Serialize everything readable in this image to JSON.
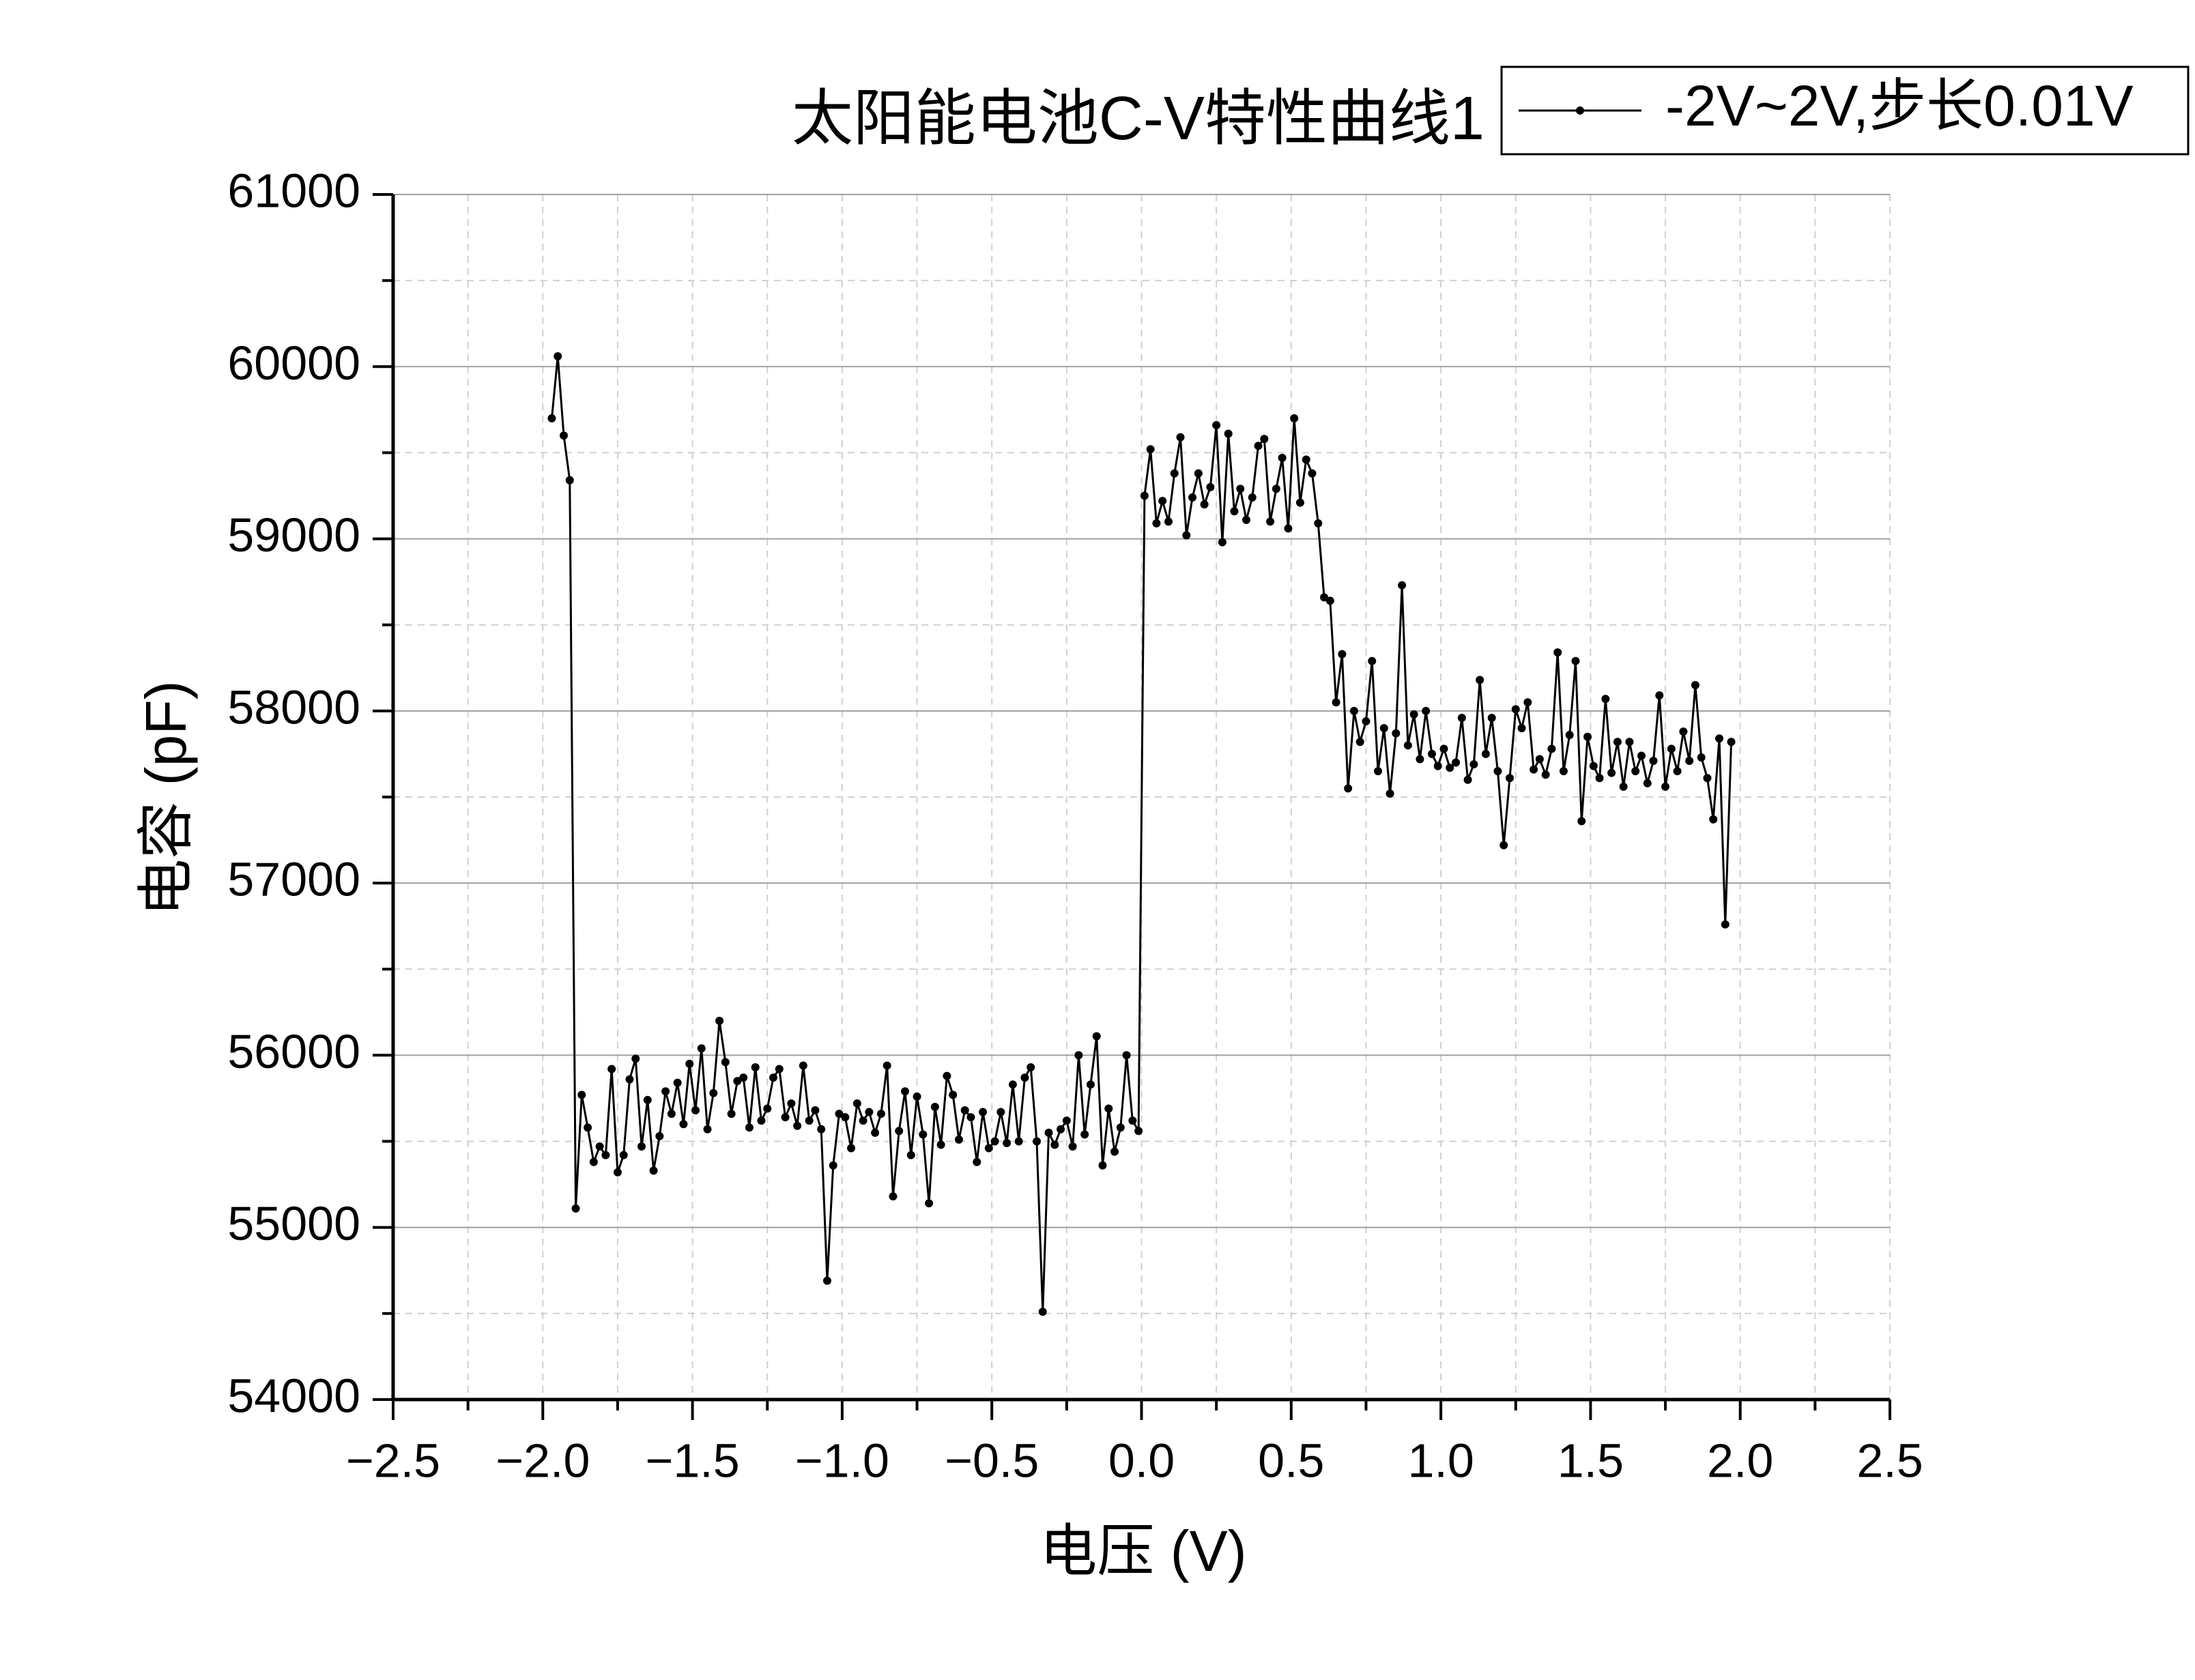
{
  "chart_data": {
    "type": "line",
    "title": "太阳能电池C-V特性曲线1",
    "x_label": "电压 (V)",
    "y_label": "电容 (pF)",
    "xlim": [
      -2.5,
      2.5
    ],
    "xticks": [
      {
        "value": -2.5,
        "label": "−2.5"
      },
      {
        "value": -2,
        "label": "−2.0"
      },
      {
        "value": -1.5,
        "label": "−1.5"
      },
      {
        "value": -1,
        "label": "−1.0"
      },
      {
        "value": -0.5,
        "label": "−0.5"
      },
      {
        "value": 0,
        "label": "0.0"
      },
      0.5,
      {
        "value": 1,
        "label": "1.0"
      },
      1.5,
      {
        "value": 2,
        "label": "2.0"
      },
      2.5
    ],
    "xminorticks": [
      -2.25,
      -1.75,
      -1.25,
      -0.75,
      -0.25,
      0.25,
      0.75,
      1.25,
      1.75,
      2.25
    ],
    "ylim": [
      54000,
      61000
    ],
    "yticks": [
      54000,
      55000,
      56000,
      57000,
      58000,
      59000,
      60000,
      61000
    ],
    "yminorticks": [
      54500,
      55500,
      56500,
      57500,
      58500,
      59500,
      60500
    ],
    "grid": true,
    "legend": "top-right",
    "x": [
      -1.97,
      -1.95,
      -1.93,
      -1.91,
      -1.89,
      -1.87,
      -1.85,
      -1.83,
      -1.81,
      -1.79,
      -1.77,
      -1.75,
      -1.73,
      -1.71,
      -1.69,
      -1.67,
      -1.65,
      -1.63,
      -1.61,
      -1.59,
      -1.57,
      -1.55,
      -1.53,
      -1.51,
      -1.49,
      -1.47,
      -1.45,
      -1.43,
      -1.41,
      -1.39,
      -1.37,
      -1.35,
      -1.33,
      -1.31,
      -1.29,
      -1.27,
      -1.25,
      -1.23,
      -1.21,
      -1.19,
      -1.17,
      -1.15,
      -1.13,
      -1.11,
      -1.09,
      -1.07,
      -1.05,
      -1.03,
      -1.01,
      -0.99,
      -0.97,
      -0.95,
      -0.93,
      -0.91,
      -0.89,
      -0.87,
      -0.85,
      -0.83,
      -0.81,
      -0.79,
      -0.77,
      -0.75,
      -0.73,
      -0.71,
      -0.69,
      -0.67,
      -0.65,
      -0.63,
      -0.61,
      -0.59,
      -0.57,
      -0.55,
      -0.53,
      -0.51,
      -0.49,
      -0.47,
      -0.45,
      -0.43,
      -0.41,
      -0.39,
      -0.37,
      -0.35,
      -0.33,
      -0.31,
      -0.29,
      -0.27,
      -0.25,
      -0.23,
      -0.21,
      -0.19,
      -0.17,
      -0.15,
      -0.13,
      -0.11,
      -0.09,
      -0.07,
      -0.05,
      -0.03,
      -0.01,
      0.01,
      0.03,
      0.05,
      0.07,
      0.09,
      0.11,
      0.13,
      0.15,
      0.17,
      0.19,
      0.21,
      0.23,
      0.25,
      0.27,
      0.29,
      0.31,
      0.33,
      0.35,
      0.37,
      0.39,
      0.41,
      0.43,
      0.45,
      0.47,
      0.49,
      0.51,
      0.53,
      0.55,
      0.57,
      0.59,
      0.61,
      0.63,
      0.65,
      0.67,
      0.69,
      0.71,
      0.73,
      0.75,
      0.77,
      0.79,
      0.81,
      0.83,
      0.85,
      0.87,
      0.89,
      0.91,
      0.93,
      0.95,
      0.97,
      0.99,
      1.01,
      1.03,
      1.05,
      1.07,
      1.09,
      1.11,
      1.13,
      1.15,
      1.17,
      1.19,
      1.21,
      1.23,
      1.25,
      1.27,
      1.29,
      1.31,
      1.33,
      1.35,
      1.37,
      1.39,
      1.41,
      1.43,
      1.45,
      1.47,
      1.49,
      1.51,
      1.53,
      1.55,
      1.57,
      1.59,
      1.61,
      1.63,
      1.65,
      1.67,
      1.69,
      1.71,
      1.73,
      1.75,
      1.77,
      1.79,
      1.81,
      1.83,
      1.85,
      1.87,
      1.89,
      1.91,
      1.93,
      1.95,
      1.97
    ],
    "series": [
      {
        "name": "-2V~2V,步长0.01V",
        "color": "#000000",
        "values": [
          59700,
          60060,
          59600,
          59340,
          55110,
          55770,
          55580,
          55380,
          55470,
          55420,
          55920,
          55320,
          55420,
          55860,
          55980,
          55470,
          55740,
          55330,
          55530,
          55790,
          55660,
          55840,
          55600,
          55950,
          55680,
          56040,
          55570,
          55780,
          56200,
          55960,
          55660,
          55850,
          55870,
          55580,
          55930,
          55620,
          55690,
          55870,
          55920,
          55640,
          55720,
          55590,
          55940,
          55620,
          55680,
          55570,
          54690,
          55360,
          55660,
          55640,
          55460,
          55720,
          55620,
          55670,
          55550,
          55660,
          55940,
          55180,
          55560,
          55790,
          55420,
          55760,
          55540,
          55140,
          55700,
          55480,
          55880,
          55770,
          55510,
          55680,
          55640,
          55380,
          55670,
          55460,
          55500,
          55670,
          55490,
          55830,
          55500,
          55870,
          55930,
          55500,
          54510,
          55550,
          55480,
          55570,
          55620,
          55470,
          56000,
          55540,
          55830,
          56110,
          55360,
          55690,
          55440,
          55580,
          56000,
          55620,
          55560,
          59250,
          59520,
          59090,
          59220,
          59100,
          59380,
          59590,
          59020,
          59240,
          59380,
          59200,
          59300,
          59660,
          58980,
          59610,
          59160,
          59290,
          59110,
          59240,
          59540,
          59580,
          59100,
          59290,
          59470,
          59060,
          59700,
          59210,
          59460,
          59380,
          59090,
          58660,
          58640,
          58050,
          58330,
          57550,
          58000,
          57820,
          57940,
          58290,
          57650,
          57900,
          57520,
          57870,
          58730,
          57800,
          57980,
          57720,
          58000,
          57750,
          57680,
          57780,
          57670,
          57700,
          57960,
          57600,
          57690,
          58180,
          57750,
          57960,
          57650,
          57220,
          57610,
          58010,
          57900,
          58050,
          57660,
          57720,
          57630,
          57780,
          58340,
          57650,
          57860,
          58290,
          57360,
          57850,
          57680,
          57610,
          58070,
          57640,
          57820,
          57560,
          57820,
          57650,
          57740,
          57580,
          57710,
          58090,
          57560,
          57780,
          57650,
          57880,
          57710,
          58150,
          57730,
          57610,
          57370,
          57840,
          56760,
          57820
        ]
      }
    ]
  }
}
